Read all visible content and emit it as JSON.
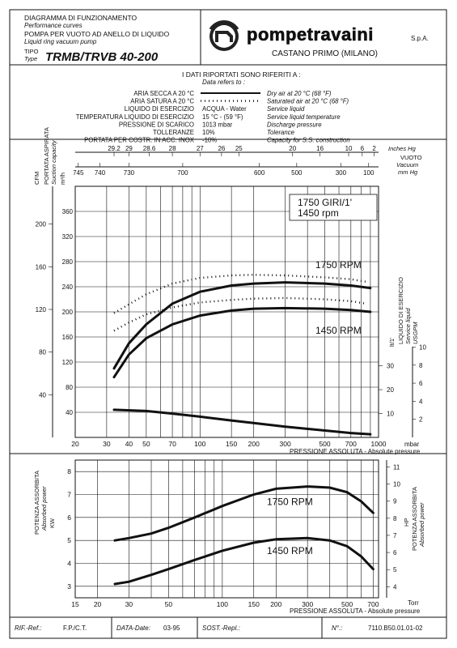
{
  "header": {
    "left_lines": [
      "DIAGRAMMA DI FUNZIONAMENTO",
      "Performance curves",
      "POMPA PER VUOTO AD ANELLO DI LIQUIDO",
      "Liquid ring vacuum pump"
    ],
    "tipo_label": "TIPO",
    "type_label": "Type",
    "model": "TRMB/TRVB 40-200",
    "brand": "pompetravaini",
    "brand_suffix": "S.p.A.",
    "location": "CASTANO PRIMO  (MILANO)"
  },
  "conditions": {
    "heading": "I DATI RIPORTATI SONO RIFERITI A :",
    "heading_en": "Data refers to :",
    "rows": [
      {
        "it": "ARIA SECCA A 20 °C",
        "value": "",
        "en": "Dry air at 20 °C (68 °F)"
      },
      {
        "it": "ARIA SATURA A 20 °C",
        "value": "",
        "en": "Saturated air at 20 °C (68 °F)"
      },
      {
        "it": "LIQUIDO DI ESERCIZIO",
        "value": "ACQUA - Water",
        "en": "Service liquid"
      },
      {
        "it": "TEMPERATURA LIQUIDO DI ESERCIZIO",
        "value": "15 °C - (59 °F)",
        "en": "Service liquid temperature"
      },
      {
        "it": "PRESSIONE DI SCARICO",
        "value": "1013 mbar",
        "en": "Discharge pressure"
      },
      {
        "it": "TOLLERANZE",
        "value": "10%",
        "en": "Tolerance"
      },
      {
        "it": "PORTATA PER COSTR. IN ACC. INOX",
        "value": "-10%",
        "en": "Capacity for S.S. construction"
      }
    ]
  },
  "footer": {
    "rif_label": "RIF.-Ref.:",
    "rif_value": "F.P./C.T.",
    "data_label": "DATA-Date:",
    "data_value": "03-95",
    "sost_label": "SOST.-Repl.:",
    "sost_value": "",
    "n_label": "N°.:",
    "n_value": "7110.B50.01.01-02"
  },
  "chart_data": [
    {
      "type": "line",
      "title": "",
      "box_label_1": "1750 GIRI/1'",
      "box_label_2": "1450 rpm",
      "xlabel": "PRESSIONE ASSOLUTA - Absolute pressure",
      "x_unit": "mbar",
      "x_scale": "log",
      "xlim": [
        20,
        1000
      ],
      "x_ticks": [
        20,
        30,
        40,
        50,
        70,
        100,
        150,
        200,
        300,
        500,
        700,
        1000
      ],
      "ylabel_left_outer": "CFM",
      "ylabel_left_inner": "PORTATA ASPIRATA",
      "ylabel_left_inner_en": "Suction capacity",
      "ylabel_left_unit": "m³/h",
      "ylim_m3h": [
        0,
        400
      ],
      "y_ticks_m3h": [
        40,
        80,
        120,
        160,
        200,
        240,
        280,
        320,
        360
      ],
      "y_ticks_cfm": [
        40,
        80,
        120,
        160,
        200
      ],
      "top_axis_inhg": {
        "label": "Inches Hg",
        "ticks": [
          "29.2",
          "29",
          "28.6",
          "28",
          "27",
          "26",
          "25",
          "20",
          "16",
          "10",
          "6",
          "2"
        ]
      },
      "top_axis_mmhg": {
        "label": "mm Hg",
        "ticks": [
          "745",
          "740",
          "730",
          "700",
          "600",
          "500",
          "300",
          "100"
        ]
      },
      "vuoto_label": "VUOTO",
      "vacuum_label": "Vacuum",
      "series": [
        {
          "name": "1750 RPM",
          "style": "solid",
          "x": [
            33,
            40,
            50,
            70,
            100,
            150,
            200,
            300,
            500,
            700,
            900
          ],
          "y": [
            110,
            150,
            180,
            213,
            232,
            242,
            245,
            247,
            245,
            242,
            238
          ]
        },
        {
          "name": "1450 RPM",
          "style": "solid",
          "x": [
            33,
            40,
            50,
            70,
            100,
            150,
            200,
            300,
            500,
            700,
            900
          ],
          "y": [
            96,
            132,
            158,
            180,
            194,
            202,
            205,
            206,
            205,
            203,
            200
          ]
        },
        {
          "style": "dotted",
          "x": [
            33,
            40,
            50,
            70,
            100,
            150,
            200,
            300,
            500,
            700,
            850
          ],
          "y": [
            198,
            212,
            228,
            245,
            254,
            258,
            259,
            258,
            255,
            252,
            248
          ]
        },
        {
          "style": "dotted",
          "x": [
            33,
            40,
            50,
            70,
            100,
            150,
            200,
            300,
            500,
            700,
            850
          ],
          "y": [
            170,
            183,
            196,
            207,
            215,
            219,
            221,
            222,
            220,
            217,
            213
          ]
        },
        {
          "style": "solid",
          "x": [
            33,
            50,
            70,
            100,
            150,
            200,
            300,
            500,
            700,
            900
          ],
          "y": [
            44,
            42,
            38,
            33,
            27,
            23,
            17,
            11,
            7,
            5
          ]
        }
      ],
      "ylabel_right": "LIQUIDO DI ESERCIZIO",
      "ylabel_right_en": "Service liquid",
      "ylabel_right_unit": "lt/1'",
      "ylabel_right_unit2": "USGPM",
      "y_ticks_right_ltmin": [
        10,
        20,
        30
      ],
      "y_ticks_right_usgpm": [
        2,
        4,
        6,
        8,
        10
      ]
    },
    {
      "type": "line",
      "title": "",
      "xlabel": "PRESSIONE ASSOLUTA - Absolute pressure",
      "x_unit": "Torr",
      "x_scale": "log",
      "xlim": [
        15,
        750
      ],
      "x_ticks": [
        15,
        20,
        30,
        50,
        100,
        150,
        200,
        300,
        500,
        700
      ],
      "ylabel_left": "POTENZA ASSORBITA",
      "ylabel_left_en": "Absorbed power",
      "ylabel_left_unit": "KW",
      "ylim_kw": [
        2.5,
        8.5
      ],
      "y_ticks_kw": [
        3,
        4,
        5,
        6,
        7,
        8
      ],
      "ylabel_right_unit": "HP",
      "ylabel_right": "POTENZA ASSORBITA",
      "ylabel_right_en": "Absorbed power",
      "y_ticks_hp": [
        4,
        5,
        6,
        7,
        8,
        9,
        10,
        11
      ],
      "series": [
        {
          "name": "1750 RPM",
          "x": [
            25,
            30,
            40,
            50,
            70,
            100,
            150,
            200,
            300,
            400,
            500,
            600,
            700
          ],
          "y": [
            5.0,
            5.1,
            5.3,
            5.55,
            6.0,
            6.5,
            7.0,
            7.25,
            7.35,
            7.3,
            7.1,
            6.7,
            6.2
          ]
        },
        {
          "name": "1450 RPM",
          "x": [
            25,
            30,
            40,
            50,
            70,
            100,
            150,
            200,
            300,
            400,
            500,
            600,
            700
          ],
          "y": [
            3.1,
            3.2,
            3.5,
            3.75,
            4.15,
            4.55,
            4.9,
            5.05,
            5.1,
            5.0,
            4.75,
            4.3,
            3.75
          ]
        }
      ]
    }
  ]
}
